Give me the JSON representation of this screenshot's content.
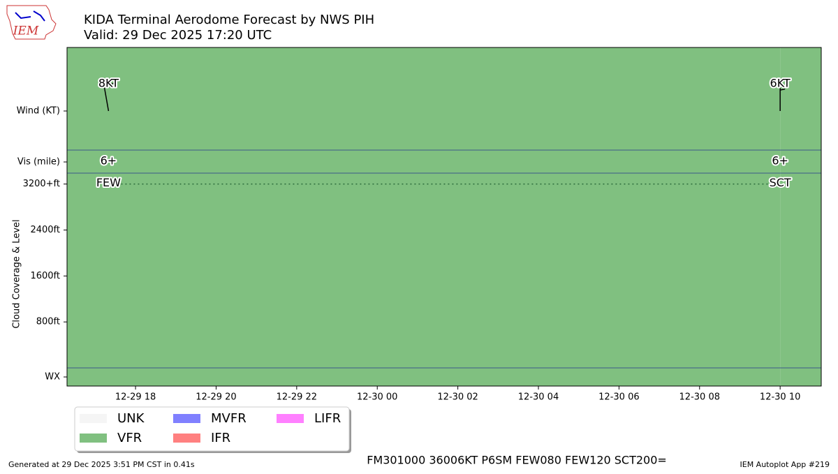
{
  "header": {
    "logo_text": "IEM",
    "title": "KIDA Terminal Aerodome Forecast by NWS PIH",
    "subtitle": "Valid: 29 Dec 2025 17:20 UTC"
  },
  "chart_data": {
    "type": "taf",
    "x": [
      17.33,
      34
    ],
    "xlim": [
      16.3,
      35.02
    ],
    "xticks": [
      {
        "value": 18,
        "label": "12-29 18"
      },
      {
        "value": 20,
        "label": "12-29 20"
      },
      {
        "value": 22,
        "label": "12-29 22"
      },
      {
        "value": 24,
        "label": "12-30 00"
      },
      {
        "value": 26,
        "label": "12-30 02"
      },
      {
        "value": 28,
        "label": "12-30 04"
      },
      {
        "value": 30,
        "label": "12-30 06"
      },
      {
        "value": 32,
        "label": "12-30 08"
      },
      {
        "value": 34,
        "label": "12-30 10"
      }
    ],
    "row_labels": {
      "wind": "Wind (KT)",
      "vis": "Vis (mile)",
      "wx": "WX"
    },
    "ylabel": "Cloud Coverage & Level",
    "ylim": [
      0,
      3390
    ],
    "yticks": [
      {
        "value": 800,
        "label": "800ft"
      },
      {
        "value": 1600,
        "label": "1600ft"
      },
      {
        "value": 2400,
        "label": "2400ft"
      },
      {
        "value": 3200,
        "label": "3200+ft"
      }
    ],
    "flight_category": [
      "VFR",
      "VFR"
    ],
    "wind_speed": [
      8,
      6
    ],
    "wind_speed_labels": [
      "8KT",
      "6KT"
    ],
    "wind_direction": [
      350,
      360
    ],
    "visibility_labels": [
      "6+",
      "6+"
    ],
    "cloud_cover": [
      "FEW",
      "SCT"
    ],
    "cloud_level": [
      3200,
      3200
    ],
    "legend": [
      {
        "name": "UNK",
        "color": "#f5f5f5"
      },
      {
        "name": "VFR",
        "color": "#80c080"
      },
      {
        "name": "MVFR",
        "color": "#8080ff"
      },
      {
        "name": "IFR",
        "color": "#ff8080"
      },
      {
        "name": "LIFR",
        "color": "#ff80ff"
      }
    ]
  },
  "footer": {
    "generated": "Generated at 29 Dec 2025 3:51 PM CST in 0.41s",
    "raw_taf": "FM301000 36006KT P6SM FEW080 FEW120 SCT200=",
    "app": "IEM Autoplot App #219"
  }
}
